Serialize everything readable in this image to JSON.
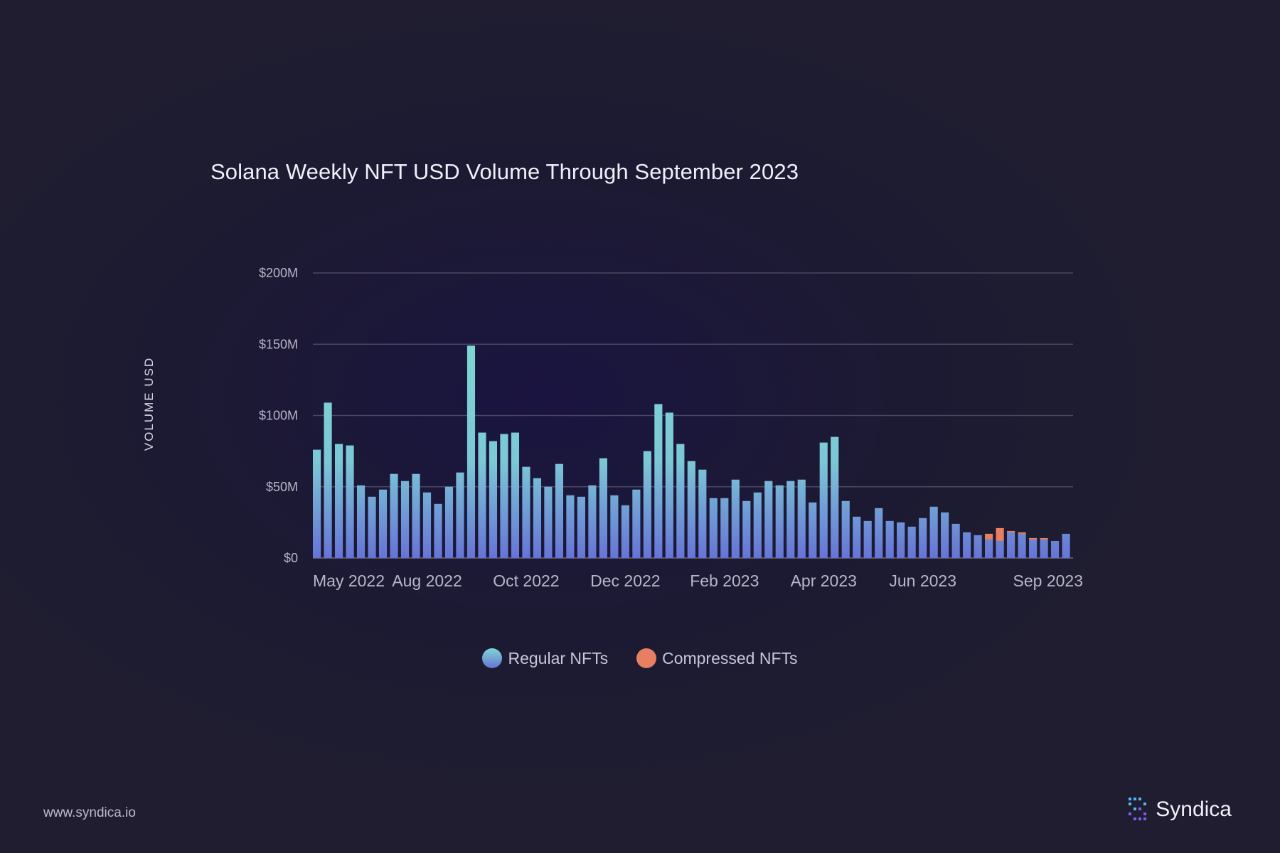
{
  "footer": {
    "url": "www.syndica.io"
  },
  "brand": {
    "name": "Syndica",
    "logo_icon": "syndica-logo-icon"
  },
  "colors": {
    "regular_top": "#7fd4d0",
    "regular_bottom": "#6a78d6",
    "compressed": "#e87f62",
    "grid": "#4a4763",
    "axis_text": "#b9b6c9"
  },
  "chart_data": {
    "type": "bar",
    "stacked": true,
    "title": "Solana Weekly NFT USD Volume Through September 2023",
    "xlabel": "",
    "ylabel": "VOLUME USD",
    "ylim": [
      0,
      200
    ],
    "yticks": [
      "$0",
      "$50M",
      "$100M",
      "$150M",
      "$200M"
    ],
    "ytick_values": [
      0,
      50,
      100,
      150,
      200
    ],
    "xtick_labels": [
      "May 2022",
      "Aug 2022",
      "Oct 2022",
      "Dec 2022",
      "Feb 2023",
      "Apr 2023",
      "Jun 2023",
      "Sep 2023"
    ],
    "xtick_bar_index": [
      0,
      10,
      19,
      28,
      37,
      46,
      55,
      65
    ],
    "grid": true,
    "legend_position": "bottom",
    "series": [
      {
        "name": "Regular NFTs",
        "values": [
          76,
          109,
          80,
          79,
          51,
          43,
          48,
          59,
          54,
          59,
          46,
          38,
          50,
          60,
          149,
          88,
          82,
          87,
          88,
          64,
          56,
          50,
          66,
          44,
          43,
          51,
          70,
          44,
          37,
          48,
          75,
          108,
          102,
          80,
          68,
          62,
          42,
          42,
          55,
          40,
          46,
          54,
          51,
          54,
          55,
          39,
          81,
          85,
          40,
          29,
          26,
          35,
          26,
          25,
          22,
          28,
          36,
          32,
          24,
          18,
          16,
          13,
          12,
          18,
          17,
          13,
          13,
          12,
          17
        ]
      },
      {
        "name": "Compressed NFTs",
        "values": [
          0,
          0,
          0,
          0,
          0,
          0,
          0,
          0,
          0,
          0,
          0,
          0,
          0,
          0,
          0,
          0,
          0,
          0,
          0,
          0,
          0,
          0,
          0,
          0,
          0,
          0,
          0,
          0,
          0,
          0,
          0,
          0,
          0,
          0,
          0,
          0,
          0,
          0,
          0,
          0,
          0,
          0,
          0,
          0,
          0,
          0,
          0,
          0,
          0,
          0,
          0,
          0,
          0,
          0,
          0,
          0,
          0,
          0,
          0,
          0,
          0,
          4,
          9,
          1,
          1,
          1,
          1,
          0,
          0
        ]
      }
    ]
  }
}
